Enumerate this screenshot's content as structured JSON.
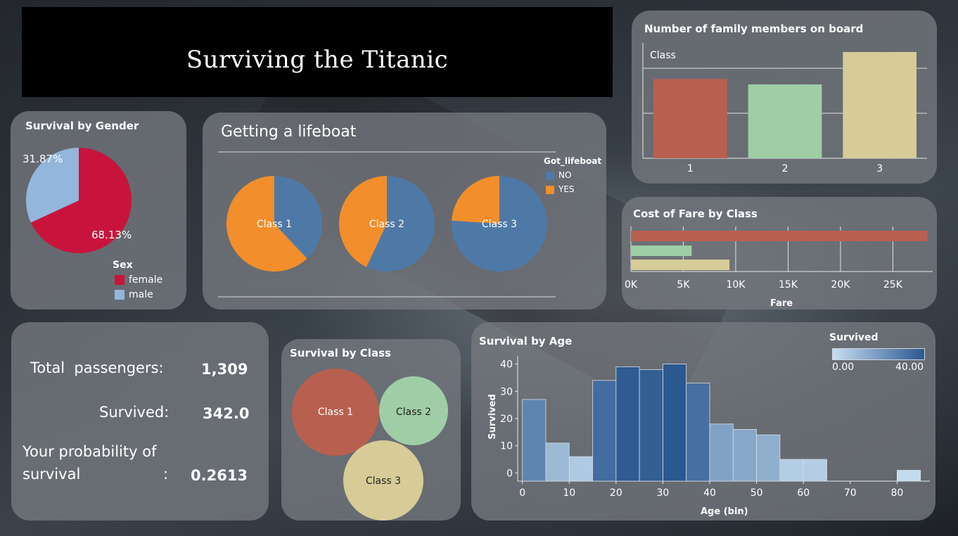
{
  "title": "Surviving the Titanic",
  "colors": {
    "class1": "#b86050",
    "class2": "#9fcea6",
    "class3": "#d7cc97",
    "female": "#c8143c",
    "male": "#93b6dc",
    "no": "#4e79a7",
    "yes": "#f28e2b",
    "seq_light": "#c6def1",
    "seq_dark": "#2c5890"
  },
  "family": {
    "title": "Number of family members on board",
    "legend_label": "Class",
    "chart_data": {
      "type": "bar",
      "categories": [
        "1",
        "2",
        "3"
      ],
      "values": [
        0.88,
        0.82,
        1.18
      ],
      "ylim": [
        0,
        1.25
      ]
    }
  },
  "gender": {
    "title": "Survival by Gender",
    "legend_title": "Sex",
    "legend": [
      {
        "label": "female",
        "color": "#c8143c"
      },
      {
        "label": "male",
        "color": "#93b6dc"
      }
    ],
    "chart_data": {
      "type": "pie",
      "labels": [
        "female",
        "male"
      ],
      "values": [
        68.13,
        31.87
      ],
      "value_labels": [
        "68.13%",
        "31.87%"
      ]
    }
  },
  "lifeboat": {
    "title": "Getting a lifeboat",
    "legend_title": "Got_lifeboat",
    "legend": [
      {
        "label": "NO",
        "color": "#4e79a7"
      },
      {
        "label": "YES",
        "color": "#f28e2b"
      }
    ],
    "chart_data": [
      {
        "type": "pie",
        "label": "Class 1",
        "labels": [
          "NO",
          "YES"
        ],
        "values": [
          38,
          62
        ]
      },
      {
        "type": "pie",
        "label": "Class 2",
        "labels": [
          "NO",
          "YES"
        ],
        "values": [
          57,
          43
        ]
      },
      {
        "type": "pie",
        "label": "Class 3",
        "labels": [
          "NO",
          "YES"
        ],
        "values": [
          76,
          24
        ]
      }
    ]
  },
  "fare": {
    "title": "Cost of Fare by Class",
    "xlabel": "Fare",
    "ticks": [
      "0K",
      "5K",
      "10K",
      "15K",
      "20K",
      "25K"
    ],
    "chart_data": {
      "type": "bar",
      "orientation": "horizontal",
      "categories": [
        "1",
        "2",
        "3"
      ],
      "values": [
        28300,
        5800,
        9400
      ],
      "xlim": [
        0,
        28800
      ],
      "tick_values": [
        0,
        5000,
        10000,
        15000,
        20000,
        25000
      ]
    }
  },
  "stats": {
    "total_label": "Total  passengers:",
    "total_value": "1,309",
    "survived_label": "Survived:",
    "survived_value": "342.0",
    "prob_line1": "Your probability of",
    "prob_line2": "survival",
    "prob_colon": ":",
    "prob_value": "0.2613"
  },
  "class_bubbles": {
    "title": "Survival by Class",
    "labels": [
      "Class 1",
      "Class 2",
      "Class 3"
    ]
  },
  "age": {
    "title": "Survival by Age",
    "legend_title": "Survived",
    "legend_min": "0.00",
    "legend_max": "40.00",
    "chart_data": {
      "type": "bar",
      "xlabel": "Age (bin)",
      "ylabel": "Survived",
      "bin_width": 5,
      "x": [
        0,
        5,
        10,
        15,
        20,
        25,
        30,
        35,
        40,
        45,
        50,
        55,
        60,
        65,
        70,
        75,
        80
      ],
      "values": [
        27,
        11,
        6,
        34,
        39,
        38,
        40,
        33,
        18,
        16,
        14,
        5,
        5,
        0,
        0,
        0,
        1
      ],
      "xticks": [
        0,
        10,
        20,
        30,
        40,
        50,
        60,
        70,
        80
      ],
      "yticks": [
        0,
        10,
        20,
        30,
        40
      ],
      "xlim": [
        -1,
        87
      ],
      "ylim": [
        -3,
        43
      ],
      "color_range": [
        0,
        40
      ]
    }
  }
}
